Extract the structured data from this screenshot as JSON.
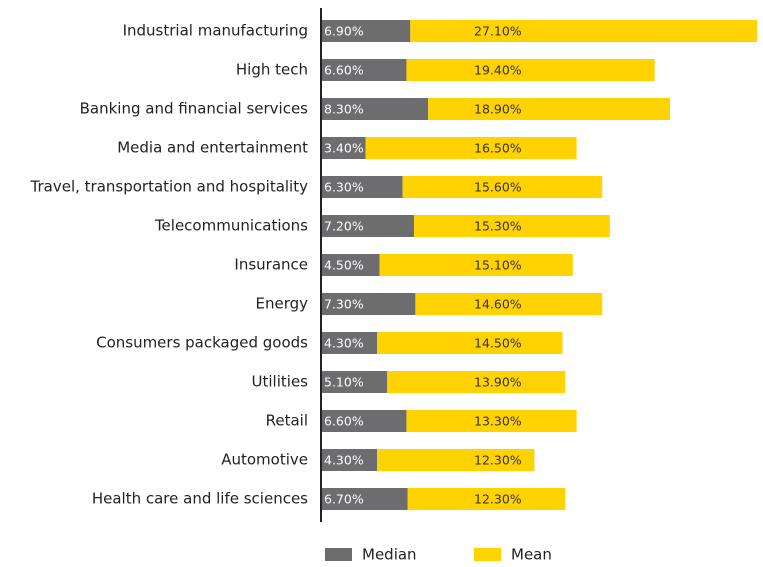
{
  "chart_data": {
    "type": "stacked_bar_horizontal",
    "categories": [
      "Industrial manufacturing",
      "High tech",
      "Banking and financial services",
      "Media and entertainment",
      "Travel, transportation and hospitality",
      "Telecommunications",
      "Insurance",
      "Energy",
      "Consumers packaged goods",
      "Utilities",
      "Retail",
      "Automotive",
      "Health care and  life sciences"
    ],
    "series": [
      {
        "name": "Median",
        "color": "#6d6d6f",
        "label_color": "#ffffff",
        "values": [
          6.9,
          6.6,
          8.3,
          3.4,
          6.3,
          7.2,
          4.5,
          7.3,
          4.3,
          5.1,
          6.6,
          4.3,
          6.7
        ],
        "value_labels": [
          "6.90%",
          "6.60%",
          "8.30%",
          "3.40%",
          "6.30%",
          "7.20%",
          "4.50%",
          "7.30%",
          "4.30%",
          "5.10%",
          "6.60%",
          "4.30%",
          "6.70%"
        ]
      },
      {
        "name": "Mean",
        "color": "#ffd200",
        "label_color": "#333333",
        "values": [
          27.1,
          19.4,
          18.9,
          16.5,
          15.6,
          15.3,
          15.1,
          14.6,
          14.5,
          13.9,
          13.3,
          12.3,
          12.3
        ],
        "value_labels": [
          "27.10%",
          "19.40%",
          "18.90%",
          "16.50%",
          "15.60%",
          "15.30%",
          "15.10%",
          "14.60%",
          "14.50%",
          "13.90%",
          "13.30%",
          "12.30%",
          "12.30%"
        ]
      }
    ]
  }
}
